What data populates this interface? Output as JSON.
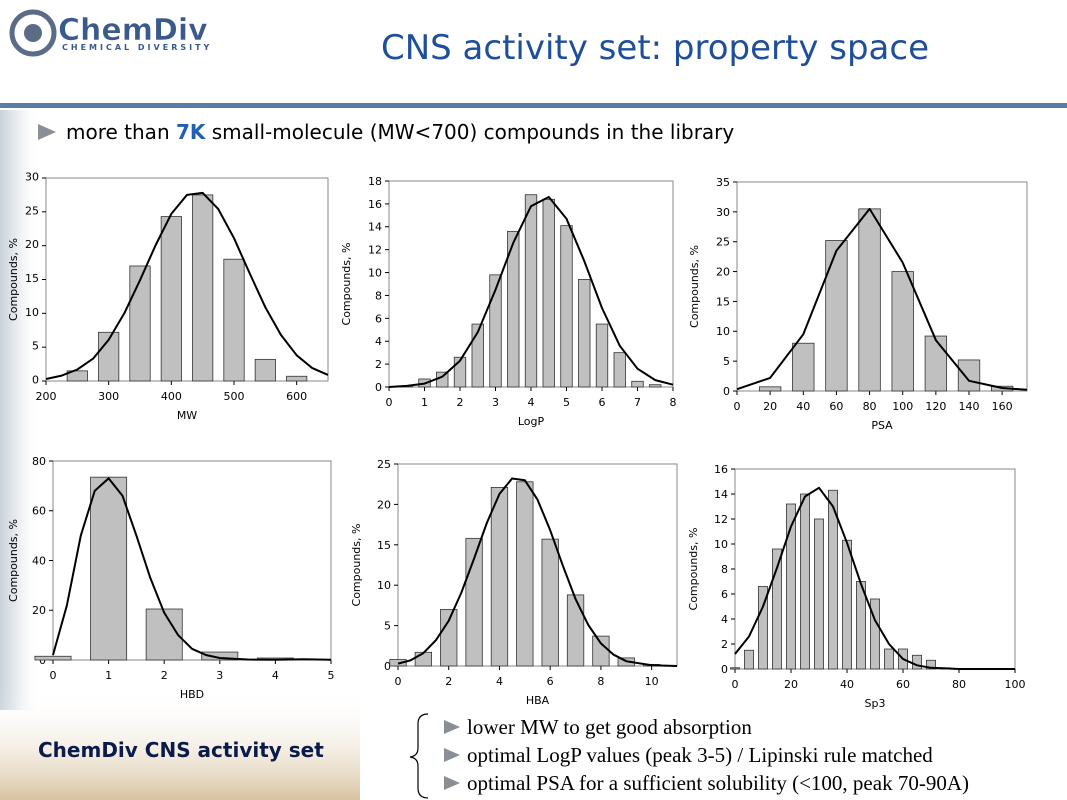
{
  "slide": {
    "logo_name": "ChemDiv",
    "logo_sub": "CHEMICAL DIVERSITY",
    "title": "CNS activity set: property space",
    "bullet": {
      "before": "more than ",
      "emph": "7K",
      "after": " small-molecule (MW<700) compounds in the library"
    },
    "caption": "ChemDiv CNS activity set",
    "notes": [
      "lower MW to get good absorption",
      "optimal LogP values (peak 3-5) / Lipinski rule matched",
      "optimal PSA for a sufficient solubility (<100, peak 70-90A)"
    ]
  },
  "chart_data": [
    {
      "type": "bar",
      "xlabel": "MW",
      "ylabel": "Compounds, %",
      "xlim": [
        200,
        650
      ],
      "ylim": [
        0,
        30
      ],
      "xticks": [
        200,
        300,
        400,
        500,
        600
      ],
      "yticks": [
        0,
        5,
        10,
        15,
        20,
        25,
        30
      ],
      "x": [
        250,
        300,
        350,
        400,
        450,
        500,
        550,
        600
      ],
      "values": [
        1.5,
        7.2,
        17,
        24.3,
        27.5,
        18,
        3.2,
        0.7
      ],
      "bar_color": "#c0c0c0",
      "fit_x": [
        200,
        225,
        250,
        275,
        300,
        325,
        350,
        375,
        400,
        425,
        450,
        475,
        500,
        525,
        550,
        575,
        600,
        625,
        650
      ],
      "fit_values": [
        0.3,
        0.8,
        1.7,
        3.3,
        6.1,
        10,
        14.9,
        20.1,
        24.7,
        27.5,
        27.8,
        25.4,
        21.1,
        15.9,
        10.9,
        6.8,
        3.8,
        1.9,
        0.9
      ],
      "line_color": "#000000"
    },
    {
      "type": "bar",
      "xlabel": "LogP",
      "ylabel": "Compounds, %",
      "xlim": [
        0,
        8
      ],
      "ylim": [
        0,
        18
      ],
      "xticks": [
        0,
        1,
        2,
        3,
        4,
        5,
        6,
        7,
        8
      ],
      "yticks": [
        0,
        2,
        4,
        6,
        8,
        10,
        12,
        14,
        16,
        18
      ],
      "x": [
        0.5,
        1,
        1.5,
        2,
        2.5,
        3,
        3.5,
        4,
        4.5,
        5,
        5.5,
        6,
        6.5,
        7,
        7.5
      ],
      "values": [
        0.1,
        0.7,
        1.3,
        2.6,
        5.5,
        9.8,
        13.6,
        16.8,
        16.4,
        14.1,
        9.4,
        5.5,
        3,
        0.5,
        0.2
      ],
      "bar_color": "#c0c0c0",
      "fit_x": [
        0,
        0.5,
        1,
        1.5,
        2,
        2.5,
        3,
        3.5,
        4,
        4.5,
        5,
        5.5,
        6,
        6.5,
        7,
        7.5,
        8
      ],
      "fit_values": [
        0,
        0.1,
        0.3,
        0.9,
        2.3,
        4.8,
        8.5,
        12.6,
        15.8,
        16.6,
        14.7,
        11,
        6.9,
        3.6,
        1.6,
        0.6,
        0.2
      ],
      "line_color": "#000000"
    },
    {
      "type": "bar",
      "xlabel": "PSA",
      "ylabel": "Compounds, %",
      "xlim": [
        0,
        175
      ],
      "ylim": [
        0,
        35
      ],
      "xticks": [
        0,
        20,
        40,
        60,
        80,
        100,
        120,
        140,
        160
      ],
      "yticks": [
        0,
        5,
        10,
        15,
        20,
        25,
        30,
        35
      ],
      "x": [
        20,
        40,
        60,
        80,
        100,
        120,
        140,
        160
      ],
      "values": [
        0.7,
        8,
        25.2,
        30.5,
        20,
        9.2,
        5.2,
        0.8
      ],
      "bar_color": "#c0c0c0",
      "fit_x": [
        0,
        20,
        40,
        60,
        80,
        100,
        120,
        140,
        160,
        175
      ],
      "fit_values": [
        0.3,
        2.2,
        9.5,
        23.5,
        30.5,
        21.5,
        8.5,
        1.7,
        0.5,
        0.2
      ],
      "line_color": "#000000"
    },
    {
      "type": "bar",
      "xlabel": "HBD",
      "ylabel": "Compounds, %",
      "xlim": [
        0,
        5
      ],
      "ylim": [
        0,
        80
      ],
      "xticks": [
        0,
        1,
        2,
        3,
        4,
        5
      ],
      "yticks": [
        0,
        20,
        40,
        60,
        80
      ],
      "x": [
        0,
        1,
        2,
        3,
        4
      ],
      "values": [
        1.5,
        73.5,
        20.5,
        3.2,
        0.8
      ],
      "bar_color": "#c0c0c0",
      "fit_x": [
        0,
        0.25,
        0.5,
        0.75,
        1,
        1.25,
        1.5,
        1.75,
        2,
        2.25,
        2.5,
        2.75,
        3,
        3.5,
        4,
        4.5,
        5
      ],
      "fit_values": [
        2,
        22,
        50,
        68,
        73,
        66,
        50,
        33,
        19,
        10,
        4.5,
        2,
        0.8,
        0.2,
        0.1,
        0.3,
        0.1
      ],
      "line_color": "#000000"
    },
    {
      "type": "bar",
      "xlabel": "HBA",
      "ylabel": "Compounds, %",
      "xlim": [
        0,
        11
      ],
      "ylim": [
        0,
        25
      ],
      "xticks": [
        0,
        2,
        4,
        6,
        8,
        10
      ],
      "yticks": [
        0,
        5,
        10,
        15,
        20,
        25
      ],
      "x": [
        0,
        1,
        2,
        3,
        4,
        5,
        6,
        7,
        8,
        9,
        10
      ],
      "values": [
        0.8,
        1.7,
        7,
        15.8,
        22.1,
        22.8,
        15.7,
        8.8,
        3.7,
        1,
        0.2
      ],
      "bar_color": "#c0c0c0",
      "fit_x": [
        0,
        0.5,
        1,
        1.5,
        2,
        2.5,
        3,
        3.5,
        4,
        4.5,
        5,
        5.5,
        6,
        6.5,
        7,
        7.5,
        8,
        8.5,
        9,
        10,
        11
      ],
      "fit_values": [
        0.3,
        0.7,
        1.6,
        3.2,
        5.6,
        9.1,
        13.3,
        17.7,
        21.3,
        23.2,
        23,
        20.6,
        16.8,
        12.4,
        8.3,
        5.1,
        2.8,
        1.4,
        0.6,
        0.1,
        0
      ],
      "line_color": "#000000"
    },
    {
      "type": "bar",
      "xlabel": "Sp3",
      "ylabel": "Compounds, %",
      "xlim": [
        0,
        100
      ],
      "ylim": [
        0,
        16
      ],
      "xticks": [
        0,
        20,
        40,
        60,
        80,
        100
      ],
      "yticks": [
        0,
        2,
        4,
        6,
        8,
        10,
        12,
        14,
        16
      ],
      "x": [
        0,
        5,
        10,
        15,
        20,
        25,
        30,
        35,
        40,
        45,
        50,
        55,
        60,
        65,
        70,
        75
      ],
      "values": [
        0.1,
        1.5,
        6.6,
        9.6,
        13.2,
        14,
        12,
        14.3,
        10.3,
        7,
        5.6,
        1.6,
        1.6,
        1.1,
        0.7,
        0.1
      ],
      "bar_color": "#c0c0c0",
      "fit_x": [
        0,
        5,
        10,
        15,
        20,
        25,
        30,
        35,
        40,
        45,
        50,
        55,
        60,
        65,
        70,
        80,
        100
      ],
      "fit_values": [
        1.2,
        2.6,
        5,
        8.1,
        11.4,
        13.8,
        14.5,
        13,
        10.1,
        6.8,
        3.9,
        2,
        0.8,
        0.3,
        0.1,
        0,
        0
      ],
      "line_color": "#000000"
    }
  ]
}
